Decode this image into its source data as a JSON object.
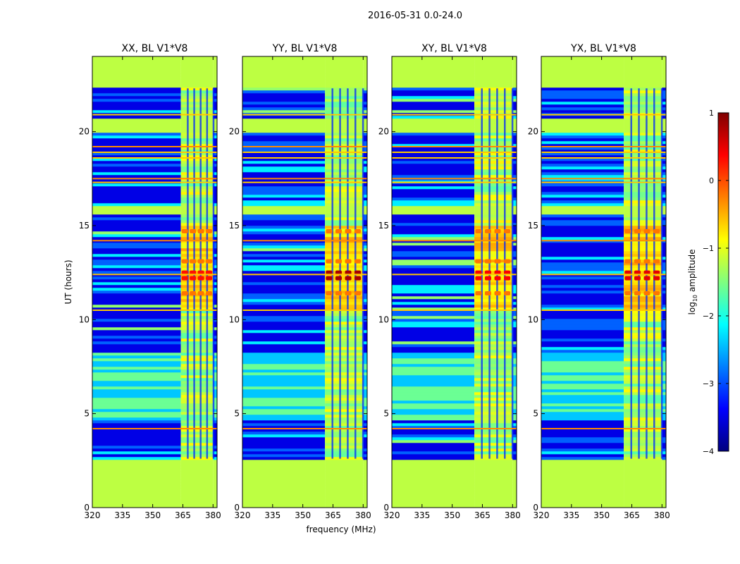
{
  "figure": {
    "suptitle": "2016-05-31 0.0-24.0"
  },
  "chart_data": {
    "type": "heatmap",
    "xlabel": "frequency (MHz)",
    "ylabel": "UT (hours)",
    "xlim": [
      320,
      382
    ],
    "ylim": [
      0,
      24
    ],
    "xticks": [
      320,
      335,
      350,
      365,
      380
    ],
    "yticks": [
      0,
      5,
      10,
      15,
      20
    ],
    "colormap": "jet",
    "colorbar": {
      "label": "log10 amplitude",
      "label_base": "log",
      "label_sub": "10",
      "label_rest": " amplitude",
      "min": -4,
      "max": 1,
      "ticks": [
        1,
        0,
        -1,
        -2,
        -3,
        -4
      ],
      "tick_labels": [
        "1",
        "0",
        "−1",
        "−2",
        "−3",
        "−4"
      ]
    },
    "flagged_value": -1.2,
    "flagged_color": "#99ff55",
    "flagged_time_ranges": [
      [
        0,
        2.6
      ],
      [
        22.3,
        24
      ],
      [
        15.6,
        16.0
      ],
      [
        20.0,
        20.7
      ],
      [
        16.9,
        17.0
      ]
    ],
    "strong_rfi_lines_ut": [
      4.2,
      10.5,
      17.3,
      17.5,
      18.6,
      18.9,
      19.2,
      20.9,
      12.4,
      14.2
    ],
    "panels": [
      {
        "title": "XX, BL V1*V8",
        "rfi_band_mhz": [
          364,
          380
        ],
        "burst_peak_log_amp": 0.3
      },
      {
        "title": "YY, BL V1*V8",
        "rfi_band_mhz": [
          361,
          380
        ],
        "burst_peak_log_amp": 0.8
      },
      {
        "title": "XY, BL V1*V8",
        "rfi_band_mhz": [
          361,
          380
        ],
        "burst_peak_log_amp": 0.4
      },
      {
        "title": "YX, BL V1*V8",
        "rfi_band_mhz": [
          361,
          380
        ],
        "burst_peak_log_amp": 0.5
      }
    ]
  }
}
